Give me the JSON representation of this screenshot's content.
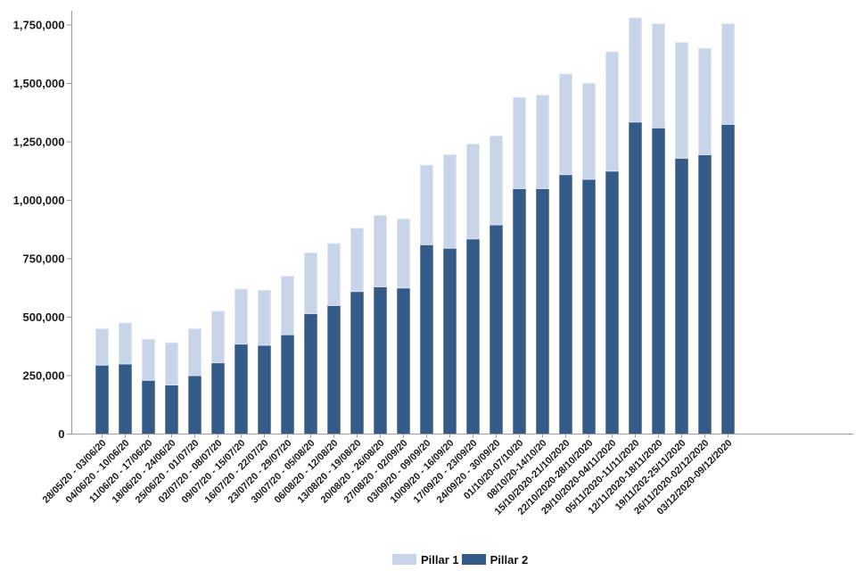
{
  "chart_data": {
    "type": "bar",
    "stacked": true,
    "title": "",
    "xlabel": "",
    "ylabel": "",
    "grid": false,
    "legend_position": "bottom",
    "ylim": [
      0,
      1750000
    ],
    "ytick_interval": 250000,
    "ytick_labels": [
      "0",
      "250,000",
      "500,000",
      "750,000",
      "1,000,000",
      "1,250,000",
      "1,500,000",
      "1,750,000"
    ],
    "axis_color": "#9b9b9b",
    "text_color": "#1a1a1a",
    "categories": [
      "28/05/20 - 03/06/20",
      "04/06/20 - 10/06/20",
      "11/06/20 - 17/06/20",
      "18/06/20 - 24/06/20",
      "25/06/20 - 01/07/20",
      "02/07/20 - 08/07/20",
      "09/07/20 - 15/07/20",
      "16/07/20 - 22/07/20",
      "23/07/20 - 29/07/20",
      "30/07/20 - 05/08/20",
      "06/08/20 - 12/08/20",
      "13/08/20 - 19/08/20",
      "20/08/20 - 26/08/20",
      "27/08/20 - 02/09/20",
      "03/09/20 - 09/09/20",
      "10/09/20 - 16/09/20",
      "17/09/20 - 23/09/20",
      "24/09/20 - 30/09/20",
      "01/10/20-07/10/20",
      "08/10/20-14/10/20",
      "15/10/2020-21/10/2020",
      "22/10/2020-28/10/2020",
      "29/10/2020-04/11/2020",
      "05/11/2020-11/11/2020",
      "12/11/2020-18/11/2020",
      "19/11/202-25/11/2020",
      "26/11/2020-02/12/2020",
      "03/12/2020-09/12/2020"
    ],
    "series": [
      {
        "name": "Pillar 2",
        "stack_position": "bottom",
        "color": "#345a87",
        "border_color": "#6d87aa",
        "values": [
          295000,
          300000,
          230000,
          210000,
          250000,
          305000,
          385000,
          380000,
          425000,
          515000,
          550000,
          610000,
          630000,
          625000,
          810000,
          795000,
          835000,
          895000,
          1050000,
          1050000,
          1110000,
          1090000,
          1125000,
          1335000,
          1310000,
          1180000,
          1195000,
          1325000
        ]
      },
      {
        "name": "Pillar 1",
        "stack_position": "top",
        "color": "#c8d4e7",
        "border_color": "#dde6f1",
        "values": [
          155000,
          175000,
          175000,
          180000,
          200000,
          220000,
          235000,
          235000,
          250000,
          260000,
          265000,
          270000,
          305000,
          295000,
          340000,
          400000,
          405000,
          380000,
          390000,
          400000,
          430000,
          410000,
          510000,
          445000,
          445000,
          495000,
          455000,
          430000
        ]
      }
    ],
    "legend": {
      "entries": [
        "Pillar 1",
        "Pillar 2"
      ]
    }
  }
}
